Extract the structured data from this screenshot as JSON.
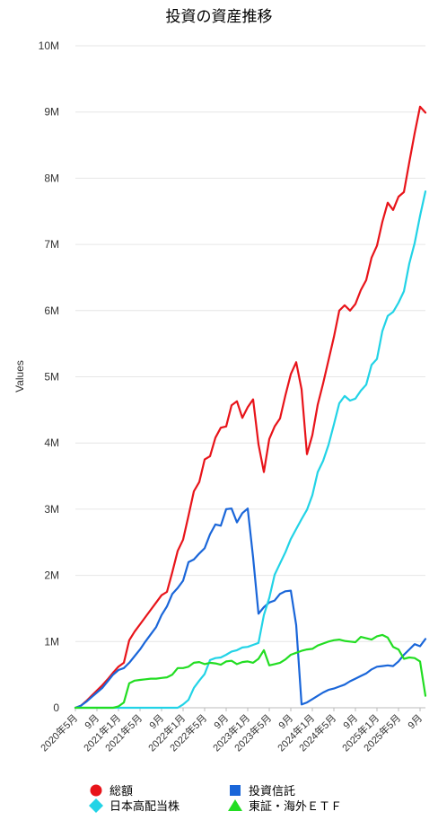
{
  "chart_data": {
    "type": "line",
    "title": "投資の資産推移",
    "xlabel": "",
    "ylabel": "Values",
    "ylim": [
      0,
      10000000
    ],
    "y_ticks": [
      "0",
      "1M",
      "2M",
      "3M",
      "4M",
      "5M",
      "6M",
      "7M",
      "8M",
      "9M",
      "10M"
    ],
    "x_ticks": [
      {
        "label": "2020年5月",
        "i": 0
      },
      {
        "label": "9月",
        "i": 4
      },
      {
        "label": "2021年1月",
        "i": 8
      },
      {
        "label": "2021年5月",
        "i": 12
      },
      {
        "label": "9月",
        "i": 16
      },
      {
        "label": "2022年1月",
        "i": 20
      },
      {
        "label": "2022年5月",
        "i": 24
      },
      {
        "label": "9月",
        "i": 28
      },
      {
        "label": "2023年1月",
        "i": 32
      },
      {
        "label": "2023年5月",
        "i": 36
      },
      {
        "label": "9月",
        "i": 40
      },
      {
        "label": "2024年1月",
        "i": 44
      },
      {
        "label": "2024年5月",
        "i": 48
      },
      {
        "label": "9月",
        "i": 52
      },
      {
        "label": "2025年1月",
        "i": 56
      },
      {
        "label": "2025年5月",
        "i": 60
      },
      {
        "label": "9月",
        "i": 64
      }
    ],
    "grid": true,
    "legend_position": "bottom",
    "x_count": 66,
    "series": [
      {
        "name": "総額",
        "color": "#e8141a",
        "marker": "circle",
        "values": [
          0,
          30000,
          100000,
          180000,
          260000,
          340000,
          430000,
          530000,
          620000,
          680000,
          1020000,
          1150000,
          1260000,
          1370000,
          1480000,
          1590000,
          1700000,
          1750000,
          2050000,
          2370000,
          2540000,
          2900000,
          3270000,
          3410000,
          3750000,
          3800000,
          4080000,
          4230000,
          4250000,
          4570000,
          4630000,
          4380000,
          4540000,
          4660000,
          3980000,
          3560000,
          4060000,
          4250000,
          4370000,
          4720000,
          5040000,
          5220000,
          4810000,
          3830000,
          4120000,
          4580000,
          4900000,
          5250000,
          5600000,
          6000000,
          6080000,
          6000000,
          6100000,
          6310000,
          6460000,
          6800000,
          6980000,
          7340000,
          7630000,
          7520000,
          7720000,
          7790000,
          8240000,
          8680000,
          9080000,
          8990000
        ]
      },
      {
        "name": "投資信託",
        "color": "#1a66d9",
        "marker": "square",
        "values": [
          0,
          30000,
          90000,
          160000,
          230000,
          300000,
          400000,
          500000,
          570000,
          600000,
          680000,
          780000,
          880000,
          1000000,
          1110000,
          1220000,
          1400000,
          1530000,
          1720000,
          1810000,
          1920000,
          2200000,
          2240000,
          2330000,
          2410000,
          2620000,
          2770000,
          2750000,
          3000000,
          3010000,
          2800000,
          2940000,
          3010000,
          2270000,
          1420000,
          1520000,
          1590000,
          1620000,
          1720000,
          1760000,
          1770000,
          1250000,
          50000,
          80000,
          130000,
          180000,
          230000,
          270000,
          290000,
          320000,
          350000,
          400000,
          440000,
          480000,
          520000,
          580000,
          620000,
          630000,
          640000,
          630000,
          700000,
          800000,
          880000,
          960000,
          930000,
          1040000
        ]
      },
      {
        "name": "日本高配当株",
        "color": "#22d3e6",
        "marker": "diamond",
        "values": [
          0,
          0,
          0,
          0,
          0,
          0,
          0,
          0,
          0,
          0,
          0,
          0,
          0,
          0,
          0,
          0,
          0,
          0,
          0,
          0,
          50000,
          120000,
          300000,
          410000,
          510000,
          720000,
          750000,
          760000,
          800000,
          850000,
          870000,
          910000,
          920000,
          950000,
          980000,
          1400000,
          1660000,
          2010000,
          2180000,
          2350000,
          2550000,
          2700000,
          2850000,
          2990000,
          3210000,
          3560000,
          3730000,
          3970000,
          4280000,
          4600000,
          4710000,
          4640000,
          4670000,
          4790000,
          4880000,
          5180000,
          5270000,
          5690000,
          5920000,
          5980000,
          6120000,
          6290000,
          6710000,
          7020000,
          7430000,
          7800000
        ]
      },
      {
        "name": "東証・海外ＥＴＦ",
        "color": "#22dd22",
        "marker": "triangle",
        "values": [
          0,
          0,
          0,
          0,
          0,
          0,
          0,
          0,
          20000,
          80000,
          370000,
          410000,
          420000,
          430000,
          440000,
          440000,
          450000,
          460000,
          500000,
          600000,
          600000,
          620000,
          680000,
          690000,
          660000,
          680000,
          670000,
          650000,
          700000,
          710000,
          660000,
          690000,
          700000,
          680000,
          740000,
          870000,
          640000,
          660000,
          680000,
          730000,
          800000,
          830000,
          860000,
          880000,
          890000,
          940000,
          970000,
          1000000,
          1020000,
          1030000,
          1010000,
          1000000,
          990000,
          1070000,
          1050000,
          1030000,
          1080000,
          1100000,
          1060000,
          920000,
          880000,
          740000,
          760000,
          750000,
          700000,
          180000
        ]
      }
    ]
  }
}
